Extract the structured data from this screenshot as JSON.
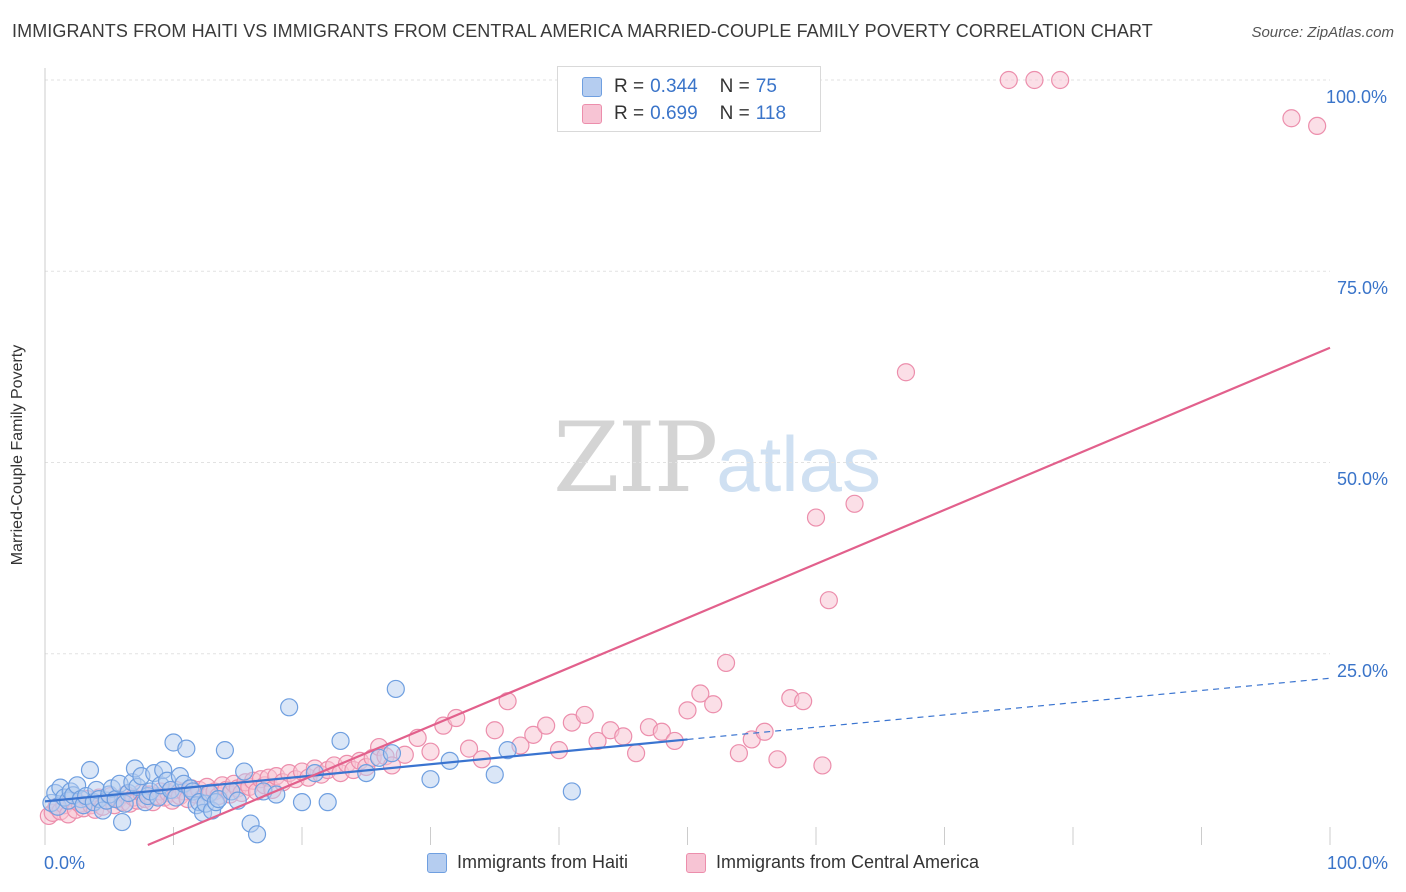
{
  "header": {
    "title": "IMMIGRANTS FROM HAITI VS IMMIGRANTS FROM CENTRAL AMERICA MARRIED-COUPLE FAMILY POVERTY CORRELATION CHART",
    "source": "Source: ZipAtlas.com"
  },
  "watermark": {
    "zip": "ZIP",
    "atlas": "atlas"
  },
  "legend": {
    "r_key": "R =",
    "n_key": "N =",
    "haiti": {
      "r": "0.344",
      "n": "75"
    },
    "central_america": {
      "r": "0.699",
      "n": "118"
    }
  },
  "axes": {
    "x_min_label": "0.0%",
    "x_max_label": "100.0%",
    "y_ticks": [
      "100.0%",
      "75.0%",
      "50.0%",
      "25.0%"
    ]
  },
  "colors": {
    "haiti_fill": "#b5cdf0",
    "haiti_stroke": "#6f9fe0",
    "haiti_line": "#3a74d0",
    "ca_fill": "#f7c4d4",
    "ca_stroke": "#ec8eac",
    "ca_line": "#e2608c",
    "tick_text": "#3a74c9"
  },
  "chart_data": {
    "type": "scatter",
    "title": "IMMIGRANTS FROM HAITI VS IMMIGRANTS FROM CENTRAL AMERICA MARRIED-COUPLE FAMILY POVERTY CORRELATION CHART",
    "xlabel": "",
    "ylabel": "Married-Couple Family Poverty",
    "xlim": [
      0,
      100
    ],
    "ylim": [
      0,
      100
    ],
    "grid": true,
    "legend_position": "top-center",
    "series": [
      {
        "name": "Immigrants from Haiti",
        "r": 0.344,
        "n": 75,
        "trend": {
          "x0": 0,
          "y0": 5.7,
          "x1": 50,
          "y1": 13.8,
          "dashed_to_x": 100,
          "dashed_to_y": 21.8
        },
        "points": [
          [
            0.5,
            5.5
          ],
          [
            0.8,
            6.8
          ],
          [
            1.0,
            5.0
          ],
          [
            1.2,
            7.5
          ],
          [
            1.5,
            6.2
          ],
          [
            1.8,
            5.8
          ],
          [
            2.0,
            7.0
          ],
          [
            2.2,
            6.5
          ],
          [
            2.5,
            7.8
          ],
          [
            2.8,
            6.0
          ],
          [
            3.0,
            5.2
          ],
          [
            3.2,
            6.4
          ],
          [
            3.5,
            9.8
          ],
          [
            3.8,
            5.6
          ],
          [
            4.0,
            7.2
          ],
          [
            4.2,
            6.0
          ],
          [
            4.5,
            4.5
          ],
          [
            4.8,
            5.8
          ],
          [
            5.0,
            6.6
          ],
          [
            5.2,
            7.4
          ],
          [
            5.5,
            6.0
          ],
          [
            5.8,
            8.0
          ],
          [
            6.0,
            3.0
          ],
          [
            6.2,
            5.4
          ],
          [
            6.5,
            6.8
          ],
          [
            6.8,
            8.2
          ],
          [
            7.0,
            10.0
          ],
          [
            7.2,
            7.6
          ],
          [
            7.5,
            9.0
          ],
          [
            7.8,
            5.6
          ],
          [
            8.0,
            6.4
          ],
          [
            8.2,
            7.0
          ],
          [
            8.5,
            9.4
          ],
          [
            8.8,
            6.2
          ],
          [
            9.0,
            7.8
          ],
          [
            9.2,
            9.8
          ],
          [
            9.5,
            8.4
          ],
          [
            9.8,
            7.2
          ],
          [
            10.0,
            13.4
          ],
          [
            10.2,
            6.2
          ],
          [
            10.5,
            9.0
          ],
          [
            10.8,
            8.0
          ],
          [
            11.0,
            12.6
          ],
          [
            11.3,
            7.4
          ],
          [
            11.5,
            7.0
          ],
          [
            11.8,
            5.2
          ],
          [
            12.0,
            5.6
          ],
          [
            12.3,
            4.2
          ],
          [
            12.5,
            5.4
          ],
          [
            12.8,
            6.8
          ],
          [
            13.0,
            4.5
          ],
          [
            13.3,
            5.6
          ],
          [
            13.5,
            6.0
          ],
          [
            14.0,
            12.4
          ],
          [
            14.5,
            7.0
          ],
          [
            15.0,
            5.8
          ],
          [
            15.5,
            9.6
          ],
          [
            16.0,
            2.8
          ],
          [
            16.5,
            1.4
          ],
          [
            17.0,
            7.0
          ],
          [
            18.0,
            6.6
          ],
          [
            19.0,
            18.0
          ],
          [
            20.0,
            5.6
          ],
          [
            21.0,
            9.4
          ],
          [
            22.0,
            5.6
          ],
          [
            23.0,
            13.6
          ],
          [
            25.0,
            9.4
          ],
          [
            26.0,
            11.4
          ],
          [
            27.0,
            12.0
          ],
          [
            27.3,
            20.4
          ],
          [
            30.0,
            8.6
          ],
          [
            31.5,
            11.0
          ],
          [
            35.0,
            9.2
          ],
          [
            36.0,
            12.4
          ],
          [
            41.0,
            7.0
          ]
        ]
      },
      {
        "name": "Immigrants from Central America",
        "r": 0.699,
        "n": 118,
        "trend": {
          "x0": 8,
          "y0": 0,
          "x1": 100,
          "y1": 65
        },
        "points": [
          [
            0.3,
            3.8
          ],
          [
            0.6,
            4.2
          ],
          [
            0.9,
            5.0
          ],
          [
            1.2,
            4.4
          ],
          [
            1.5,
            5.2
          ],
          [
            1.8,
            4.0
          ],
          [
            2.1,
            5.8
          ],
          [
            2.4,
            4.6
          ],
          [
            2.7,
            5.4
          ],
          [
            3.0,
            4.8
          ],
          [
            3.3,
            6.0
          ],
          [
            3.6,
            5.2
          ],
          [
            3.9,
            4.6
          ],
          [
            4.2,
            6.2
          ],
          [
            4.5,
            5.0
          ],
          [
            4.8,
            5.8
          ],
          [
            5.1,
            6.4
          ],
          [
            5.4,
            5.2
          ],
          [
            5.7,
            6.0
          ],
          [
            6.0,
            5.6
          ],
          [
            6.3,
            6.6
          ],
          [
            6.6,
            5.4
          ],
          [
            6.9,
            6.2
          ],
          [
            7.2,
            5.8
          ],
          [
            7.5,
            6.8
          ],
          [
            7.8,
            6.0
          ],
          [
            8.1,
            6.6
          ],
          [
            8.4,
            5.6
          ],
          [
            8.7,
            6.4
          ],
          [
            9.0,
            7.0
          ],
          [
            9.3,
            6.2
          ],
          [
            9.6,
            6.8
          ],
          [
            9.9,
            5.8
          ],
          [
            10.2,
            7.2
          ],
          [
            10.5,
            6.4
          ],
          [
            10.8,
            7.0
          ],
          [
            11.1,
            6.0
          ],
          [
            11.4,
            7.4
          ],
          [
            11.7,
            6.6
          ],
          [
            12.0,
            7.2
          ],
          [
            12.3,
            6.2
          ],
          [
            12.6,
            7.6
          ],
          [
            12.9,
            6.8
          ],
          [
            13.2,
            7.0
          ],
          [
            13.5,
            6.4
          ],
          [
            13.8,
            7.8
          ],
          [
            14.1,
            7.2
          ],
          [
            14.4,
            6.6
          ],
          [
            14.7,
            8.0
          ],
          [
            15.0,
            7.4
          ],
          [
            15.3,
            6.8
          ],
          [
            15.6,
            8.2
          ],
          [
            15.9,
            7.6
          ],
          [
            16.2,
            8.4
          ],
          [
            16.5,
            7.0
          ],
          [
            16.8,
            8.6
          ],
          [
            17.1,
            7.8
          ],
          [
            17.4,
            8.8
          ],
          [
            17.7,
            7.2
          ],
          [
            18.0,
            9.0
          ],
          [
            18.5,
            8.2
          ],
          [
            19.0,
            9.4
          ],
          [
            19.5,
            8.6
          ],
          [
            20.0,
            9.6
          ],
          [
            20.5,
            8.8
          ],
          [
            21.0,
            10.0
          ],
          [
            21.5,
            9.2
          ],
          [
            22.0,
            9.8
          ],
          [
            22.5,
            10.4
          ],
          [
            23.0,
            9.4
          ],
          [
            23.5,
            10.6
          ],
          [
            24.0,
            9.8
          ],
          [
            24.5,
            11.0
          ],
          [
            25.0,
            10.2
          ],
          [
            25.5,
            11.4
          ],
          [
            26.0,
            12.8
          ],
          [
            26.5,
            11.6
          ],
          [
            27.0,
            10.4
          ],
          [
            28.0,
            11.8
          ],
          [
            29.0,
            14.0
          ],
          [
            30.0,
            12.2
          ],
          [
            31.0,
            15.6
          ],
          [
            32.0,
            16.6
          ],
          [
            33.0,
            12.6
          ],
          [
            34.0,
            11.2
          ],
          [
            35.0,
            15.0
          ],
          [
            36.0,
            18.8
          ],
          [
            37.0,
            13.0
          ],
          [
            38.0,
            14.4
          ],
          [
            39.0,
            15.6
          ],
          [
            40.0,
            12.4
          ],
          [
            41.0,
            16.0
          ],
          [
            42.0,
            17.0
          ],
          [
            43.0,
            13.6
          ],
          [
            44.0,
            15.0
          ],
          [
            45.0,
            14.2
          ],
          [
            46.0,
            12.0
          ],
          [
            47.0,
            15.4
          ],
          [
            48.0,
            14.8
          ],
          [
            49.0,
            13.6
          ],
          [
            50.0,
            17.6
          ],
          [
            51.0,
            19.8
          ],
          [
            52.0,
            18.4
          ],
          [
            53.0,
            23.8
          ],
          [
            54.0,
            12.0
          ],
          [
            55.0,
            13.8
          ],
          [
            56.0,
            14.8
          ],
          [
            57.0,
            11.2
          ],
          [
            58.0,
            19.2
          ],
          [
            59.0,
            18.8
          ],
          [
            60.0,
            42.8
          ],
          [
            60.5,
            10.4
          ],
          [
            61.0,
            32.0
          ],
          [
            63.0,
            44.6
          ],
          [
            67.0,
            61.8
          ],
          [
            75.0,
            100.0
          ],
          [
            77.0,
            100.0
          ],
          [
            79.0,
            100.0
          ],
          [
            97.0,
            95.0
          ],
          [
            99.0,
            94.0
          ]
        ]
      }
    ]
  },
  "bottom_legend": {
    "haiti": "Immigrants from Haiti",
    "central_america": "Immigrants from Central America"
  }
}
